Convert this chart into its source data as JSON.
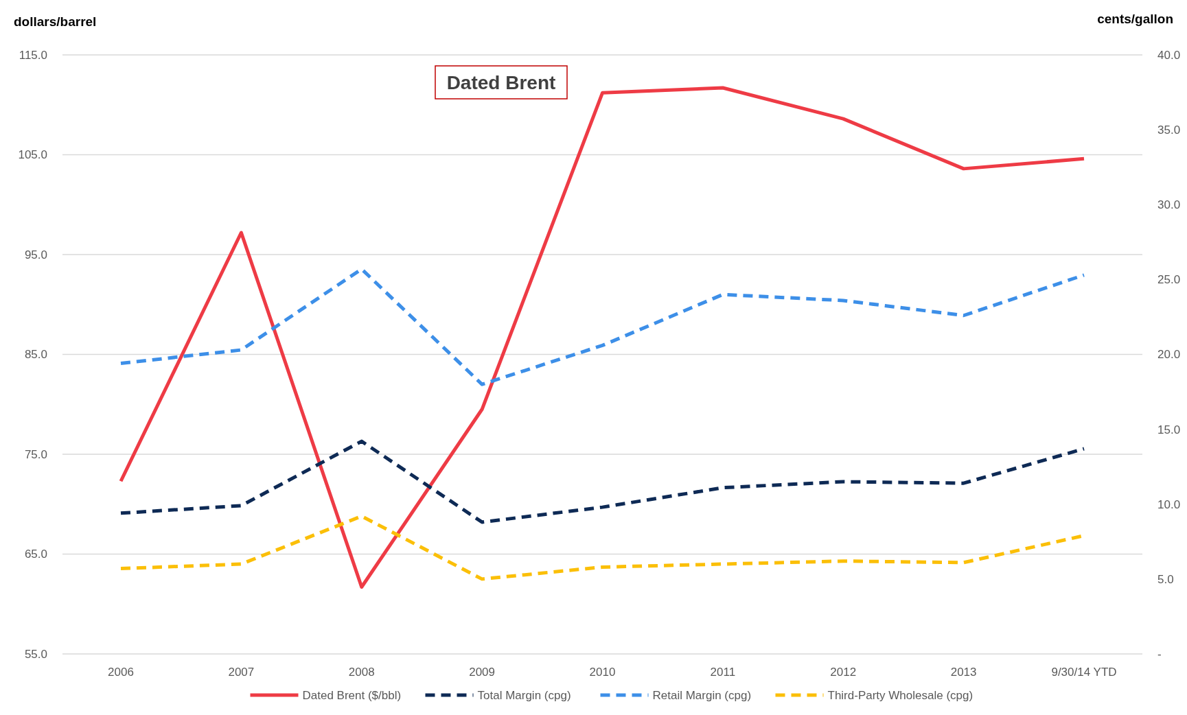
{
  "chart_data": {
    "type": "line",
    "ylabel": "dollars/barrel",
    "y2label": "cents/gallon",
    "categories": [
      "2006",
      "2007",
      "2008",
      "2009",
      "2010",
      "2011",
      "2012",
      "2013",
      "9/30/14 YTD"
    ],
    "series": [
      {
        "name": "Dated Brent ($/bbl)",
        "color": "#ee3b45",
        "line_style": "solid",
        "values": [
          72.3,
          97.2,
          61.7,
          79.5,
          111.2,
          111.7,
          108.6,
          103.6,
          104.6
        ]
      },
      {
        "name": "Total Margin (cpg)",
        "color": "#0e2a55",
        "line_style": "dashed",
        "axis": "y2",
        "values": [
          9.4,
          9.9,
          14.2,
          8.8,
          9.8,
          11.1,
          11.5,
          11.4,
          13.7
        ]
      },
      {
        "name": "Retail Margin (cpg)",
        "color": "#3d8fe8",
        "line_style": "dashed",
        "axis": "y2",
        "values": [
          19.4,
          20.3,
          25.7,
          18.0,
          20.6,
          24.0,
          23.6,
          22.6,
          25.3
        ]
      },
      {
        "name": "Third-Party Wholesale (cpg)",
        "color": "#fbbf08",
        "line_style": "dashed",
        "axis": "y2",
        "values": [
          5.7,
          6.0,
          9.2,
          5.0,
          5.8,
          6.0,
          6.2,
          6.1,
          7.9
        ]
      }
    ],
    "ylim": [
      55,
      115
    ],
    "yticks": [
      {
        "value": 55,
        "label": "55.0"
      },
      {
        "value": 65,
        "label": "65.0"
      },
      {
        "value": 75,
        "label": "75.0"
      },
      {
        "value": 85,
        "label": "85.0"
      },
      {
        "value": 95,
        "label": "95.0"
      },
      {
        "value": 105,
        "label": "105.0"
      },
      {
        "value": 115,
        "label": "115.0"
      }
    ],
    "y2lim": [
      0,
      40
    ],
    "y2ticks": [
      {
        "value": 0,
        "label": "-"
      },
      {
        "value": 5,
        "label": "5.0"
      },
      {
        "value": 10,
        "label": "10.0"
      },
      {
        "value": 15,
        "label": "15.0"
      },
      {
        "value": 20,
        "label": "20.0"
      },
      {
        "value": 25,
        "label": "25.0"
      },
      {
        "value": 30,
        "label": "30.0"
      },
      {
        "value": 35,
        "label": "35.0"
      },
      {
        "value": 40,
        "label": "40.0"
      }
    ],
    "grid": "y",
    "legend": "bottom",
    "annotations": [
      "Dated Brent"
    ]
  }
}
